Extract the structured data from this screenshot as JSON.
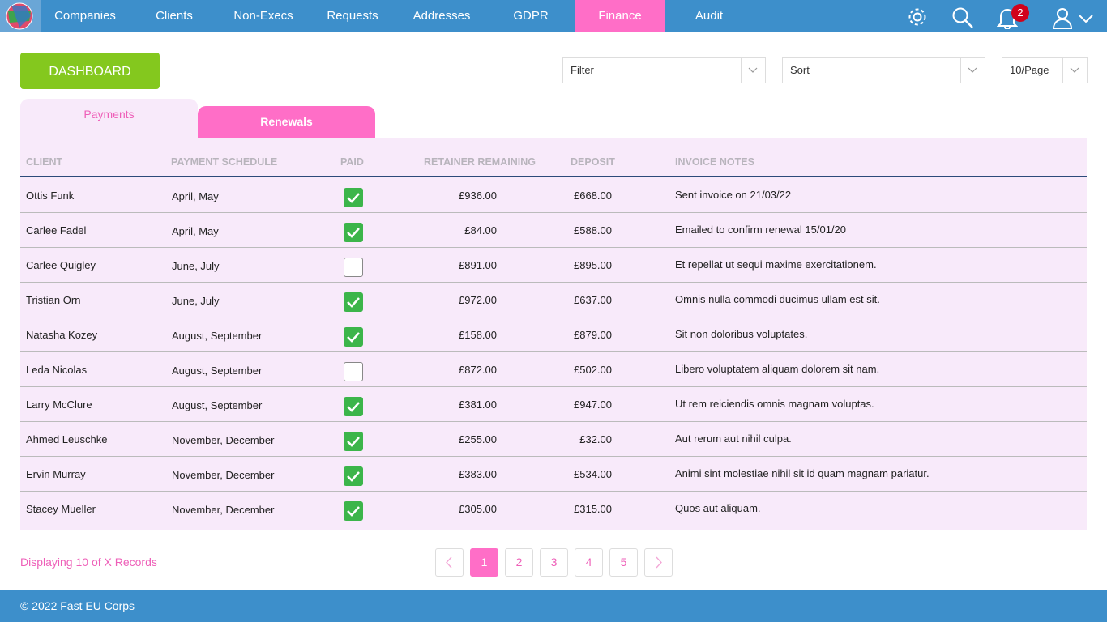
{
  "nav": {
    "items": [
      "Companies",
      "Clients",
      "Non-Execs",
      "Requests",
      "Addresses",
      "GDPR",
      "Finance",
      "Audit"
    ],
    "active_index": 6,
    "notifications": 2
  },
  "toolbar": {
    "dashboard_button": "DASHBOARD",
    "filter": "Filter",
    "sort": "Sort",
    "page_size": "10/Page"
  },
  "tabs": {
    "items": [
      "Payments",
      "Renewals"
    ],
    "active_index": 0
  },
  "table": {
    "columns": [
      "CLIENT",
      "PAYMENT SCHEDULE",
      "PAID",
      "RETAINER REMAINING",
      "DEPOSIT",
      "INVOICE NOTES"
    ],
    "rows": [
      [
        "Ottis Funk",
        "April, May",
        true,
        "£936.00",
        "£668.00",
        "Sent invoice on 21/03/22"
      ],
      [
        "Carlee Fadel",
        "April, May",
        true,
        "£84.00",
        "£588.00",
        "Emailed to confirm renewal 15/01/20"
      ],
      [
        "Carlee Quigley",
        "June, July",
        false,
        "£891.00",
        "£895.00",
        "Et repellat ut sequi maxime exercitationem."
      ],
      [
        "Tristian Orn",
        "June, July",
        true,
        "£972.00",
        "£637.00",
        "Omnis nulla commodi ducimus ullam est sit."
      ],
      [
        "Natasha Kozey",
        "August, September",
        true,
        "£158.00",
        "£879.00",
        "Sit non doloribus voluptates."
      ],
      [
        "Leda Nicolas",
        "August, September",
        false,
        "£872.00",
        "£502.00",
        "Libero voluptatem aliquam dolorem sit nam."
      ],
      [
        "Larry McClure",
        "August, September",
        true,
        "£381.00",
        "£947.00",
        "Ut rem reiciendis omnis magnam voluptas."
      ],
      [
        "Ahmed Leuschke",
        "November, December",
        true,
        "£255.00",
        "£32.00",
        "Aut rerum aut nihil culpa."
      ],
      [
        "Ervin Murray",
        "November, December",
        true,
        "£383.00",
        "£534.00",
        "Animi sint molestiae nihil sit id quam magnam pariatur."
      ],
      [
        "Stacey Mueller",
        "November, December",
        true,
        "£305.00",
        "£315.00",
        "Quos aut aliquam."
      ]
    ]
  },
  "pagination": {
    "status": "Displaying 10 of X Records",
    "pages": [
      1,
      2,
      3,
      4,
      5
    ],
    "active_index": 0
  },
  "footer": {
    "copyright": "© 2022 Fast EU Corps"
  }
}
